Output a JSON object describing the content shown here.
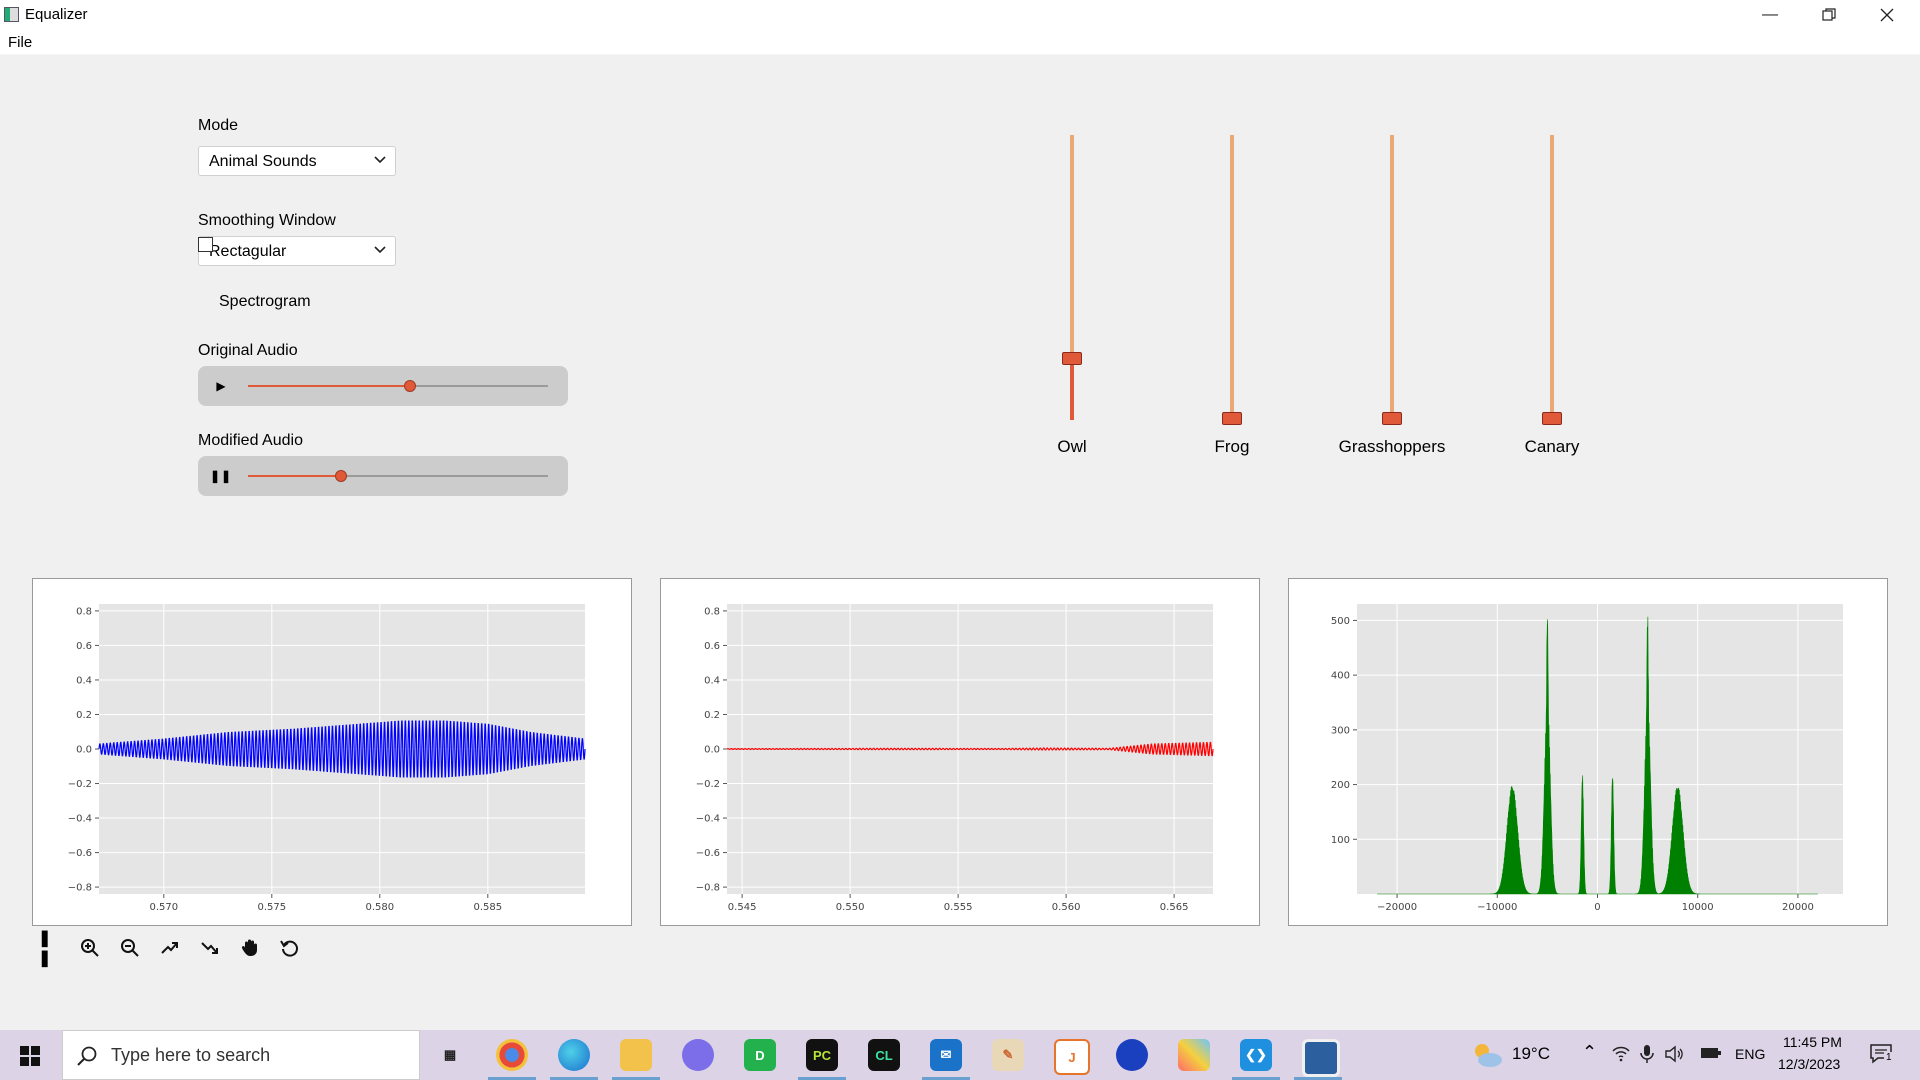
{
  "window": {
    "title": "Equalizer",
    "minimize_icon": "minimize-icon",
    "restore_icon": "restore-icon",
    "close_icon": "close-icon"
  },
  "menu": {
    "file": "File"
  },
  "controls": {
    "mode_label": "Mode",
    "mode_value": "Animal Sounds",
    "window_label": "Smoothing Window",
    "window_value": "Rectagular",
    "spectrogram_label": "Spectrogram",
    "spectrogram_checked": false,
    "original_label": "Original Audio",
    "original_state": "paused",
    "original_progress": 0.54,
    "modified_label": "Modified Audio",
    "modified_state": "playing",
    "modified_progress": 0.31
  },
  "sliders": [
    {
      "label": "Owl",
      "level": 0.21
    },
    {
      "label": "Frog",
      "level": 0.0
    },
    {
      "label": "Grasshoppers",
      "level": 0.0
    },
    {
      "label": "Canary",
      "level": 0.0
    }
  ],
  "chart_data": [
    {
      "type": "line",
      "series": [
        {
          "color": "#0000ff"
        }
      ],
      "xlim": [
        0.567,
        0.5895
      ],
      "ylim": [
        -0.84,
        0.84
      ],
      "xticks": [
        "0.570",
        "0.575",
        "0.580",
        "0.585"
      ],
      "yticks": [
        "0.8",
        "0.6",
        "0.4",
        "0.2",
        "0.0",
        "−0.2",
        "−0.4",
        "−0.6",
        "−0.8"
      ],
      "envelope": {
        "x": [
          0.567,
          0.57,
          0.573,
          0.576,
          0.579,
          0.581,
          0.583,
          0.585,
          0.587,
          0.5895
        ],
        "amplitude": [
          0.03,
          0.06,
          0.1,
          0.12,
          0.15,
          0.17,
          0.17,
          0.15,
          0.1,
          0.06
        ]
      },
      "grid": true
    },
    {
      "type": "line",
      "series": [
        {
          "color": "#ff0000"
        }
      ],
      "xlim": [
        0.5443,
        0.5668
      ],
      "ylim": [
        -0.84,
        0.84
      ],
      "xticks": [
        "0.545",
        "0.550",
        "0.555",
        "0.560",
        "0.565"
      ],
      "yticks": [
        "0.8",
        "0.6",
        "0.4",
        "0.2",
        "0.0",
        "−0.2",
        "−0.4",
        "−0.6",
        "−0.8"
      ],
      "envelope": {
        "x": [
          0.5443,
          0.552,
          0.557,
          0.559,
          0.562,
          0.564,
          0.5668
        ],
        "amplitude": [
          0.002,
          0.004,
          0.003,
          0.006,
          0.004,
          0.03,
          0.04
        ]
      },
      "grid": true
    },
    {
      "type": "area",
      "series": [
        {
          "color": "#008000"
        }
      ],
      "xlim": [
        -24000,
        24500
      ],
      "ylim": [
        0,
        530
      ],
      "xticks": [
        "−20000",
        "−10000",
        "0",
        "10000",
        "20000"
      ],
      "yticks": [
        "500",
        "400",
        "300",
        "200",
        "100"
      ],
      "peaks": [
        {
          "center": -8500,
          "width": 1300,
          "height": 200
        },
        {
          "center": -5000,
          "width": 280,
          "height": 530
        },
        {
          "center": -5000,
          "width": 700,
          "height": 360
        },
        {
          "center": -1500,
          "width": 280,
          "height": 225
        },
        {
          "center": 1500,
          "width": 280,
          "height": 225
        },
        {
          "center": 5000,
          "width": 280,
          "height": 530
        },
        {
          "center": 5000,
          "width": 700,
          "height": 360
        },
        {
          "center": 8000,
          "width": 1300,
          "height": 200
        }
      ],
      "grid": true
    }
  ],
  "plot_toolbar": [
    "pause-icon",
    "zoom-in-icon",
    "zoom-out-icon",
    "speed-up-icon",
    "slow-down-icon",
    "pan-icon",
    "reset-icon"
  ],
  "taskbar": {
    "search_placeholder": "Type here to search",
    "weather": "19°C",
    "language": "ENG",
    "time": "11:45 PM",
    "date": "12/3/2023",
    "notifications": "1"
  }
}
